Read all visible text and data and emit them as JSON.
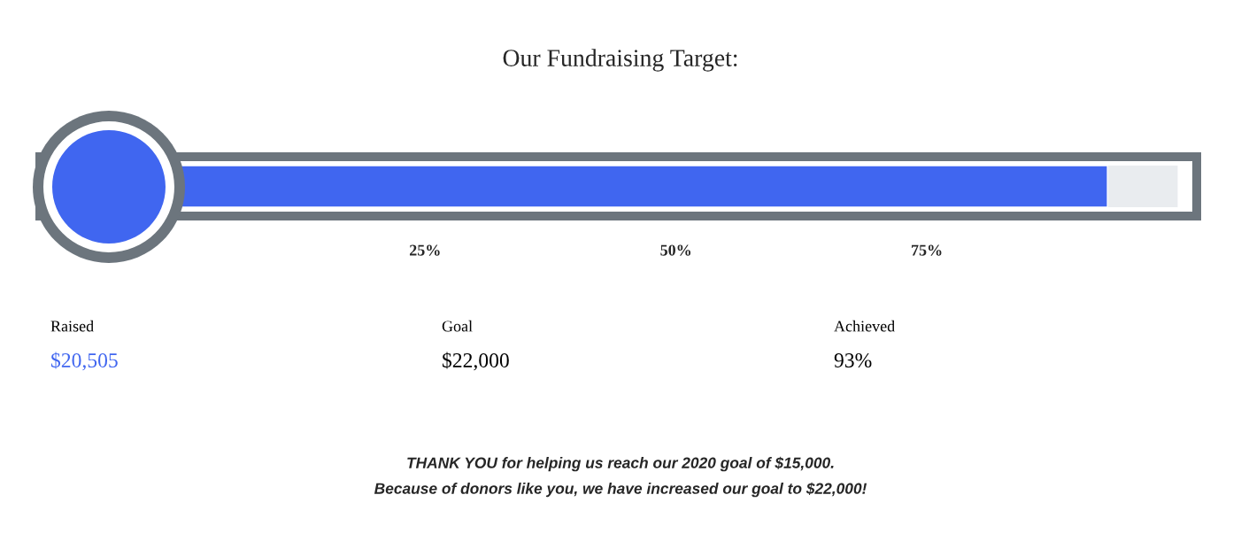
{
  "chart_data": {
    "type": "bar",
    "orientation": "horizontal",
    "title": "Our Fundraising Target:",
    "categories": [
      null
    ],
    "series": [
      {
        "color": "#4066f0",
        "values": [
          93
        ]
      }
    ],
    "xlim": [
      -13.4,
      101.9
    ],
    "bands": [
      {
        "axis": "x",
        "from": 93,
        "to": 100,
        "color": "#e9ecef"
      }
    ],
    "xticks": [
      {
        "value": 25,
        "label": "25%"
      },
      {
        "value": 50,
        "label": "50%"
      },
      {
        "value": 75,
        "label": "75%"
      }
    ],
    "tick_labels": "x",
    "annotations": [
      "Raised",
      "$20,505",
      "Goal",
      "$22,000",
      "Achieved",
      "93%",
      "THANK YOU for helping us reach our 2020 goal of $15,000.",
      "Because of donors like you, we have increased our goal to $22,000!"
    ]
  }
}
